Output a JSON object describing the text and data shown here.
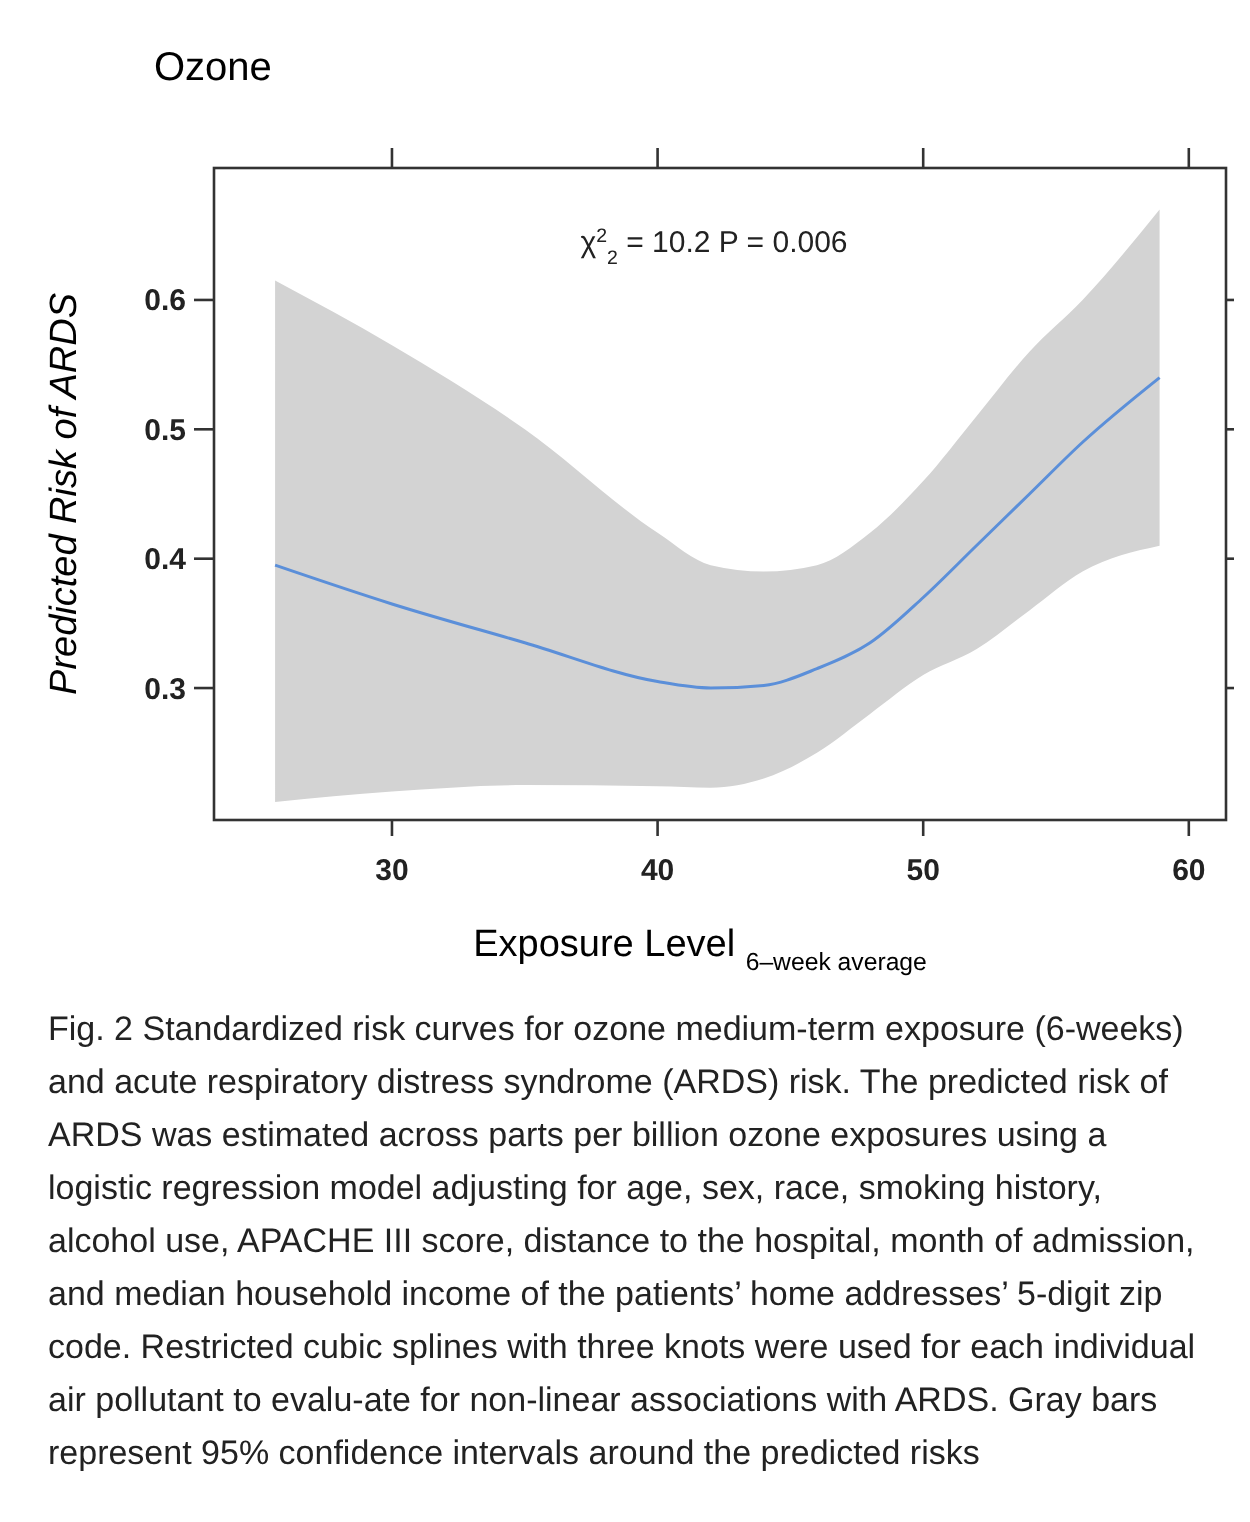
{
  "chart_data": {
    "type": "line",
    "title": "Ozone",
    "xlabel": "Exposure Level $_{6–week average}$",
    "ylabel": "Predicted Risk of ARDS",
    "xlim": [
      23.3,
      61.4
    ],
    "xticks": [
      30,
      40,
      50,
      60
    ],
    "ylim": [
      0.198,
      0.702
    ],
    "yticks": [
      0.3,
      0.4,
      0.5,
      0.6
    ],
    "grid": false,
    "annotations": [
      "χ$^{2}$$_{2}$ = 10.2  P = 0.006",
      "Fig. 2  Standardized risk curves for ozone medium-term exposure (6-weeks) and acute respiratory distress syndrome (ARDS) risk. The predicted risk of ARDS was estimated across parts per billion ozone exposures using a logistic regression model adjusting for age, sex, race, smoking history, alcohol use, APACHE III score, distance to the hospital, month of admission, and median household income of the patients’ home addresses’ 5-digit zip code. Restricted cubic splines with three knots were used for each individual air pollutant to evalu-ate for non-linear associations with ARDS. Gray bars represent 95% confidence intervals around the predicted risks"
    ],
    "x": [
      25.6,
      30,
      35,
      40,
      42,
      44,
      46,
      48,
      50,
      52,
      54,
      56,
      58.9
    ],
    "series": [
      {
        "color": "#5b8fd9",
        "values": [
          0.395,
          0.365,
          0.335,
          0.305,
          0.3,
          0.302,
          0.315,
          0.335,
          0.37,
          0.41,
          0.45,
          0.49,
          0.54
        ],
        "lower": [
          0.212,
          0.22,
          0.225,
          0.224,
          0.223,
          0.23,
          0.25,
          0.28,
          0.31,
          0.33,
          0.36,
          0.39,
          0.41
        ],
        "upper": [
          0.615,
          0.565,
          0.5,
          0.42,
          0.395,
          0.39,
          0.395,
          0.42,
          0.46,
          0.51,
          0.56,
          0.6,
          0.67
        ]
      }
    ]
  }
}
